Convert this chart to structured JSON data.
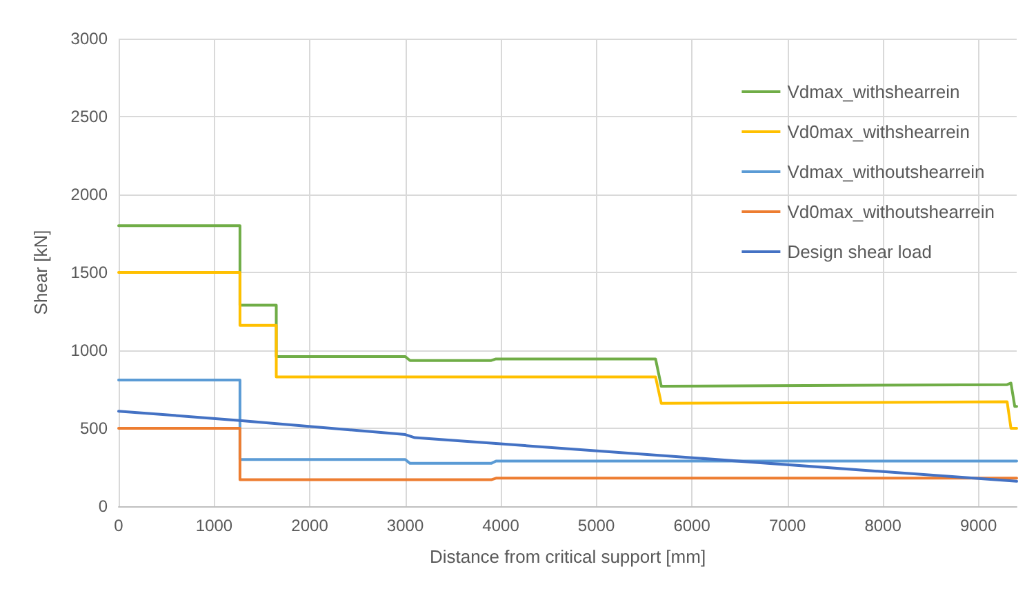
{
  "chart_data": {
    "type": "line",
    "xlabel": "Distance from critical support [mm]",
    "ylabel": "Shear [kN]",
    "xlim": [
      0,
      9400
    ],
    "xticks": [
      0,
      1000,
      2000,
      3000,
      4000,
      5000,
      6000,
      7000,
      8000,
      9000
    ],
    "ylim": [
      0,
      3000
    ],
    "yticks": [
      0,
      500,
      1000,
      1500,
      2000,
      2500,
      3000
    ],
    "grid": true,
    "legend": "top right",
    "marker": "none",
    "line_style": "solid",
    "series": [
      {
        "name": "Vdmax_withshearrein",
        "color": "#70ad47",
        "x": [
          0,
          1270,
          1270,
          1650,
          1650,
          3000,
          3050,
          3900,
          3950,
          5620,
          5680,
          9300,
          9340,
          9380,
          9400
        ],
        "values": [
          1800,
          1800,
          1290,
          1290,
          960,
          960,
          935,
          935,
          945,
          945,
          770,
          780,
          790,
          640,
          640
        ]
      },
      {
        "name": "Vd0max_withshearrein",
        "color": "#ffc000",
        "x": [
          0,
          1270,
          1270,
          1650,
          1650,
          5620,
          5680,
          9300,
          9340,
          9400
        ],
        "values": [
          1500,
          1500,
          1160,
          1160,
          830,
          830,
          660,
          670,
          500,
          500
        ]
      },
      {
        "name": "Vdmax_withoutshearrein",
        "color": "#5b9bd5",
        "x": [
          0,
          1270,
          1270,
          3000,
          3050,
          3900,
          3950,
          9400
        ],
        "values": [
          810,
          810,
          300,
          300,
          275,
          275,
          290,
          290
        ]
      },
      {
        "name": "Vd0max_withoutshearrein",
        "color": "#ed7d31",
        "x": [
          0,
          1270,
          1270,
          3900,
          3950,
          9400
        ],
        "values": [
          500,
          500,
          170,
          170,
          180,
          180
        ]
      },
      {
        "name": "Design shear load",
        "color": "#4472c4",
        "x": [
          0,
          1270,
          3000,
          3100,
          9400
        ],
        "values": [
          610,
          550,
          460,
          440,
          160
        ]
      }
    ]
  }
}
